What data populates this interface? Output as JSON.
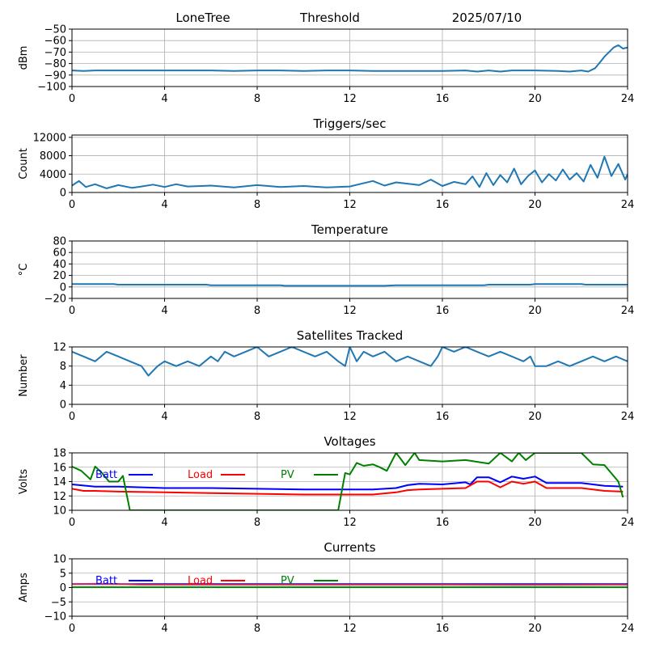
{
  "header": {
    "station": "LoneTree",
    "mode": "Threshold",
    "date": "2025/07/10"
  },
  "colors": {
    "main": "#1f77b4",
    "batt": "#0000ff",
    "load": "#ff0000",
    "pv": "#008000",
    "grid": "#b0b0b0"
  },
  "chart_data": [
    {
      "id": "threshold",
      "type": "line",
      "title": "",
      "ylabel": "dBm",
      "xlim": [
        0,
        24
      ],
      "xticks": [
        0,
        4,
        8,
        12,
        16,
        20,
        24
      ],
      "ylim": [
        -100,
        -50
      ],
      "yticks": [
        -100,
        -90,
        -80,
        -70,
        -60,
        -50
      ],
      "grid": true,
      "series": [
        {
          "color": "#1f77b4",
          "x": [
            0,
            0.5,
            1,
            2,
            3,
            4,
            5,
            6,
            7,
            8,
            9,
            10,
            11,
            12,
            13,
            14,
            15,
            16,
            17,
            17.5,
            18,
            18.5,
            19,
            20,
            21,
            21.5,
            22,
            22.3,
            22.6,
            22.8,
            23,
            23.2,
            23.4,
            23.6,
            23.8,
            24
          ],
          "y": [
            -86,
            -86.5,
            -86,
            -86,
            -86,
            -86,
            -86,
            -86,
            -86.5,
            -86,
            -86,
            -86.5,
            -86,
            -86,
            -86.5,
            -86.5,
            -86.5,
            -86.5,
            -86,
            -87,
            -86,
            -87,
            -86,
            -86,
            -86.5,
            -87,
            -86,
            -87,
            -84,
            -79,
            -74,
            -70,
            -66,
            -64,
            -67,
            -66
          ]
        }
      ]
    },
    {
      "id": "triggers",
      "type": "line",
      "title": "Triggers/sec",
      "ylabel": "Count",
      "xlim": [
        0,
        24
      ],
      "xticks": [
        0,
        4,
        8,
        12,
        16,
        20,
        24
      ],
      "ylim": [
        0,
        12500
      ],
      "yticks": [
        0,
        4000,
        8000,
        12000
      ],
      "grid": true,
      "series": [
        {
          "color": "#1f77b4",
          "x": [
            0,
            0.3,
            0.6,
            1,
            1.5,
            2,
            2.6,
            3,
            3.5,
            4,
            4.5,
            5,
            6,
            7,
            8,
            9,
            10,
            11,
            12,
            12.5,
            13,
            13.5,
            14,
            15,
            15.5,
            16,
            16.5,
            17,
            17.3,
            17.6,
            17.9,
            18.2,
            18.5,
            18.8,
            19.1,
            19.4,
            19.7,
            20,
            20.3,
            20.6,
            20.9,
            21.2,
            21.5,
            21.8,
            22.1,
            22.4,
            22.7,
            23,
            23.3,
            23.6,
            23.9,
            24
          ],
          "y": [
            1500,
            2500,
            1200,
            1800,
            900,
            1600,
            1000,
            1300,
            1700,
            1200,
            1800,
            1300,
            1500,
            1100,
            1600,
            1200,
            1400,
            1100,
            1300,
            1900,
            2500,
            1500,
            2200,
            1600,
            2800,
            1400,
            2300,
            1800,
            3500,
            1200,
            4200,
            1600,
            3800,
            2200,
            5200,
            1800,
            3600,
            4800,
            2200,
            4000,
            2600,
            5000,
            2800,
            4200,
            2400,
            6000,
            3200,
            7800,
            3600,
            6200,
            2800,
            4000
          ]
        }
      ]
    },
    {
      "id": "temperature",
      "type": "line",
      "title": "Temperature",
      "ylabel": "°C",
      "xlim": [
        0,
        24
      ],
      "xticks": [
        0,
        4,
        8,
        12,
        16,
        20,
        24
      ],
      "ylim": [
        -20,
        80
      ],
      "yticks": [
        -20,
        0,
        20,
        40,
        60,
        80
      ],
      "grid": true,
      "series": [
        {
          "color": "#1f77b4",
          "x": [
            0,
            1.8,
            2,
            5.8,
            6,
            9,
            9.2,
            13.5,
            14,
            17.8,
            18,
            19.8,
            20,
            22,
            22.2,
            24
          ],
          "y": [
            5,
            5,
            4,
            4,
            3,
            3,
            2,
            2,
            3,
            3,
            4,
            4,
            5,
            5,
            4,
            4
          ]
        }
      ]
    },
    {
      "id": "satellites",
      "type": "line",
      "title": "Satellites Tracked",
      "ylabel": "Number",
      "xlim": [
        0,
        24
      ],
      "xticks": [
        0,
        4,
        8,
        12,
        16,
        20,
        24
      ],
      "ylim": [
        0,
        12
      ],
      "yticks": [
        0,
        4,
        8,
        12
      ],
      "grid": true,
      "series": [
        {
          "color": "#1f77b4",
          "x": [
            0,
            0.5,
            1,
            1.5,
            2,
            2.5,
            3,
            3.3,
            3.5,
            3.7,
            4,
            4.5,
            5,
            5.5,
            6,
            6.3,
            6.6,
            7,
            7.5,
            8,
            8.5,
            9,
            9.5,
            10,
            10.5,
            11,
            11.5,
            11.8,
            12,
            12.3,
            12.6,
            13,
            13.5,
            14,
            14.5,
            15,
            15.5,
            15.8,
            16,
            16.5,
            17,
            17.5,
            18,
            18.5,
            19,
            19.5,
            19.8,
            20,
            20.5,
            21,
            21.5,
            22,
            22.5,
            23,
            23.5,
            24
          ],
          "y": [
            11,
            10,
            9,
            11,
            10,
            9,
            8,
            6,
            7,
            8,
            9,
            8,
            9,
            8,
            10,
            9,
            11,
            10,
            11,
            12,
            10,
            11,
            12,
            11,
            10,
            11,
            9,
            8,
            12,
            9,
            11,
            10,
            11,
            9,
            10,
            9,
            8,
            10,
            12,
            11,
            12,
            11,
            10,
            11,
            10,
            9,
            10,
            8,
            8,
            9,
            8,
            9,
            10,
            9,
            10,
            9
          ]
        }
      ]
    },
    {
      "id": "voltages",
      "type": "line",
      "title": "Voltages",
      "ylabel": "Volts",
      "xlim": [
        0,
        24
      ],
      "xticks": [
        0,
        4,
        8,
        12,
        16,
        20,
        24
      ],
      "ylim": [
        10,
        18
      ],
      "yticks": [
        10,
        12,
        14,
        16,
        18
      ],
      "grid": true,
      "legend": [
        "Batt",
        "Load",
        "PV"
      ],
      "series": [
        {
          "name": "Batt",
          "color": "#0000ff",
          "x": [
            0,
            1,
            2,
            4,
            6,
            8,
            10,
            12,
            13,
            14,
            14.5,
            15,
            16,
            17,
            17.2,
            17.5,
            18,
            18.5,
            19,
            19.5,
            20,
            20.5,
            21,
            22,
            23,
            23.8
          ],
          "y": [
            13.6,
            13.3,
            13.3,
            13.1,
            13.1,
            13.0,
            12.9,
            12.9,
            12.9,
            13.1,
            13.5,
            13.7,
            13.6,
            13.9,
            13.6,
            14.6,
            14.6,
            13.9,
            14.7,
            14.4,
            14.7,
            13.8,
            13.8,
            13.8,
            13.4,
            13.3
          ]
        },
        {
          "name": "Load",
          "color": "#ff0000",
          "x": [
            0,
            0.5,
            1,
            2,
            4,
            6,
            8,
            10,
            12,
            13,
            14,
            14.5,
            15,
            16,
            17,
            17.5,
            18,
            18.5,
            19,
            19.5,
            20,
            20.5,
            21,
            22,
            23,
            23.8
          ],
          "y": [
            13.0,
            12.7,
            12.7,
            12.6,
            12.5,
            12.4,
            12.3,
            12.2,
            12.2,
            12.2,
            12.5,
            12.8,
            12.9,
            13.0,
            13.1,
            14.0,
            14.0,
            13.2,
            14.0,
            13.7,
            14.0,
            13.1,
            13.1,
            13.1,
            12.7,
            12.6
          ]
        },
        {
          "name": "PV",
          "color": "#008000",
          "x": [
            0,
            0.4,
            0.8,
            1,
            1.3,
            1.6,
            2,
            2.2,
            2.5,
            11.5,
            11.8,
            12,
            12.3,
            12.6,
            13,
            13.3,
            13.6,
            14,
            14.4,
            14.8,
            15,
            16,
            17,
            18,
            18.5,
            19,
            19.3,
            19.6,
            20,
            21,
            22,
            22.5,
            23,
            23.6,
            23.8
          ],
          "y": [
            16.1,
            15.5,
            14.3,
            16.1,
            15.2,
            14.0,
            14.0,
            14.8,
            10,
            10,
            15.2,
            15.0,
            16.6,
            16.2,
            16.4,
            16.0,
            15.5,
            18,
            16.3,
            18,
            17.0,
            16.8,
            17.0,
            16.5,
            18,
            16.8,
            18,
            17.0,
            18,
            18,
            18,
            16.4,
            16.3,
            14.0,
            11.8
          ]
        }
      ]
    },
    {
      "id": "currents",
      "type": "line",
      "title": "Currents",
      "ylabel": "Amps",
      "xlim": [
        0,
        24
      ],
      "xticks": [
        0,
        4,
        8,
        12,
        16,
        20,
        24
      ],
      "ylim": [
        -10,
        10
      ],
      "yticks": [
        -10,
        -5,
        0,
        5,
        10
      ],
      "grid": true,
      "legend": [
        "Batt",
        "Load",
        "PV"
      ],
      "series": [
        {
          "name": "Batt",
          "color": "#0000ff",
          "x": [
            0,
            24
          ],
          "y": [
            1.2,
            1.2
          ]
        },
        {
          "name": "Load",
          "color": "#d03060",
          "x": [
            0,
            1,
            2,
            3,
            4,
            8,
            12,
            16,
            20,
            24
          ],
          "y": [
            1.2,
            1.3,
            1.2,
            1.0,
            1.0,
            1.0,
            1.0,
            1.0,
            0.9,
            1.0
          ]
        },
        {
          "name": "PV",
          "color": "#008000",
          "x": [
            0,
            24
          ],
          "y": [
            0.1,
            0.1
          ]
        }
      ]
    }
  ]
}
